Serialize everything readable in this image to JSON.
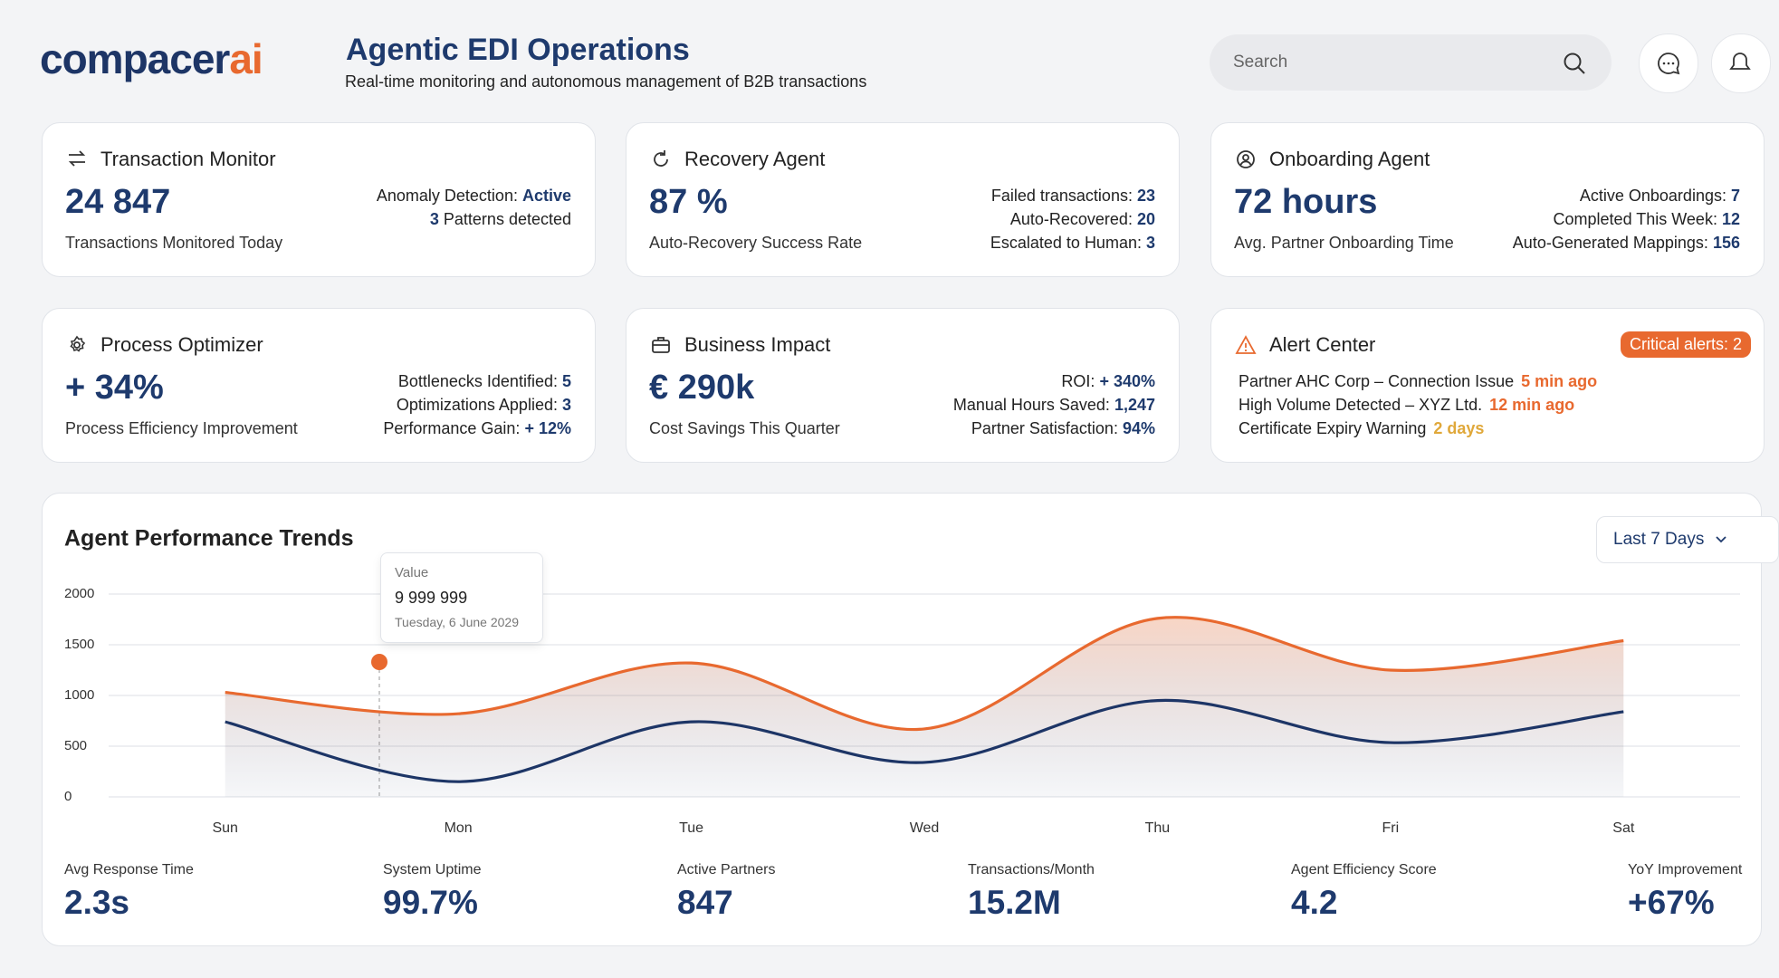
{
  "header": {
    "logo_main": "compacer",
    "logo_accent": "ai",
    "title": "Agentic EDI Operations",
    "subtitle": "Real-time monitoring and autonomous management of B2B transactions",
    "search_placeholder": "Search"
  },
  "cards": [
    {
      "title": "Transaction Monitor",
      "value": "24 847",
      "label": "Transactions Monitored Today",
      "stats": [
        {
          "label": "Anomaly Detection:",
          "value": "Active"
        },
        {
          "value": "3",
          "label": "Patterns detected"
        }
      ]
    },
    {
      "title": "Recovery Agent",
      "value": "87 %",
      "label": "Auto-Recovery Success Rate",
      "stats": [
        {
          "label": "Failed transactions:",
          "value": "23"
        },
        {
          "label": "Auto-Recovered:",
          "value": "20"
        },
        {
          "label": "Escalated to Human:",
          "value": "3"
        }
      ]
    },
    {
      "title": "Onboarding Agent",
      "value": "72 hours",
      "label": "Avg. Partner Onboarding Time",
      "stats": [
        {
          "label": "Active Onboardings:",
          "value": "7"
        },
        {
          "label": "Completed This Week:",
          "value": "12"
        },
        {
          "label": "Auto-Generated Mappings:",
          "value": "156"
        }
      ]
    },
    {
      "title": "Process Optimizer",
      "value": "+ 34%",
      "label": "Process Efficiency Improvement",
      "stats": [
        {
          "label": "Bottlenecks Identified:",
          "value": "5"
        },
        {
          "label": "Optimizations Applied:",
          "value": "3"
        },
        {
          "label": "Performance Gain:",
          "value": "+ 12%"
        }
      ]
    },
    {
      "title": "Business Impact",
      "value": "€ 290k",
      "label": "Cost Savings This Quarter",
      "stats": [
        {
          "label": "ROI:",
          "value": "+ 340%"
        },
        {
          "label": "Manual Hours Saved:",
          "value": "1,247"
        },
        {
          "label": "Partner Satisfaction:",
          "value": "94%"
        }
      ]
    }
  ],
  "alert_center": {
    "title": "Alert Center",
    "badge": "Critical alerts: 2",
    "alerts": [
      {
        "text": "Partner AHC Corp – Connection Issue",
        "time": "5 min ago",
        "color": "#e8692f"
      },
      {
        "text": "High Volume Detected – XYZ Ltd.",
        "time": "12 min ago",
        "color": "#e8692f"
      },
      {
        "text": "Certificate Expiry Warning",
        "time": "2 days",
        "color": "#e0a83a"
      }
    ]
  },
  "chart_data": {
    "type": "line",
    "title": "Agent Performance Trends",
    "categories": [
      "Sun",
      "Mon",
      "Tue",
      "Wed",
      "Thu",
      "Fri",
      "Sat"
    ],
    "series": [
      {
        "color": "#e8692f",
        "values": [
          1030,
          820,
          1320,
          670,
          1760,
          1250,
          1540
        ]
      },
      {
        "color": "#1d3566",
        "values": [
          740,
          150,
          740,
          340,
          950,
          535,
          840
        ]
      }
    ],
    "ylim": [
      0,
      2000
    ],
    "yticks": [
      0,
      500,
      1000,
      1500,
      2000
    ],
    "grid": true
  },
  "range_selector": "Last 7 Days",
  "tooltip": {
    "label": "Value",
    "value": "9 999 999",
    "date": "Tuesday, 6 June 2029"
  },
  "kpis": [
    {
      "label": "Avg Response Time",
      "value": "2.3s"
    },
    {
      "label": "System Uptime",
      "value": "99.7%"
    },
    {
      "label": "Active Partners",
      "value": "847"
    },
    {
      "label": "Transactions/Month",
      "value": "15.2M"
    },
    {
      "label": "Agent Efficiency Score",
      "value": "4.2"
    },
    {
      "label": "YoY Improvement",
      "value": "+67%"
    }
  ]
}
